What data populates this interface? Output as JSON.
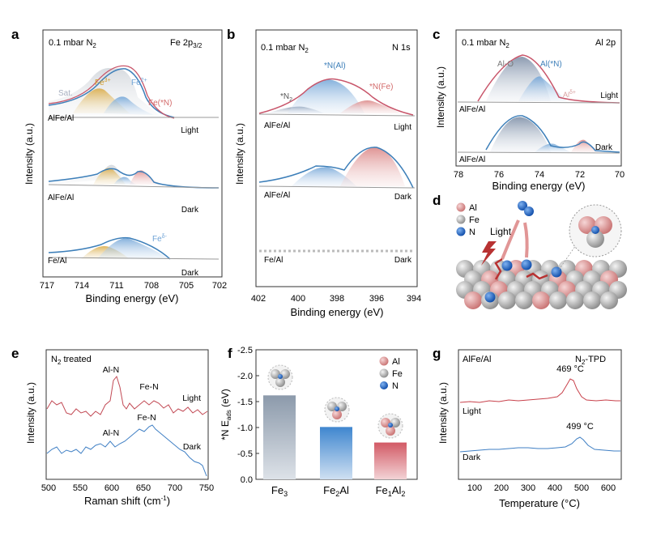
{
  "panels": {
    "a": {
      "letter": "a",
      "condition": "0.1 mbar N",
      "condition_sub": "2",
      "region": "Fe 2p",
      "region_sub": "3/2",
      "ylabel": "Intensity (a.u.)",
      "xlabel": "Binding energy (eV)",
      "ticks": [
        "717",
        "714",
        "711",
        "708",
        "705",
        "702"
      ],
      "peak_labels": {
        "sat": "Sat.",
        "fe3": "Fe",
        "fe3_sup": "3+",
        "fe2": "Fe",
        "fe2_sup": "2+",
        "fen": "Fe(*N)",
        "fed": "Fe",
        "fed_sup": "δ-"
      },
      "traces": [
        {
          "sample": "AlFe/Al",
          "state": "Light"
        },
        {
          "sample": "AlFe/Al",
          "state": "Dark"
        },
        {
          "sample": "Fe/Al",
          "state": "Dark"
        }
      ]
    },
    "b": {
      "letter": "b",
      "condition": "0.1 mbar N",
      "condition_sub": "2",
      "region": "N 1s",
      "ylabel": "Intensity (a.u.)",
      "xlabel": "Binding energy (eV)",
      "ticks": [
        "402",
        "400",
        "398",
        "396",
        "394"
      ],
      "peak_labels": {
        "n2": "*N",
        "n2_sub": "2",
        "nal": "*N(Al)",
        "nfe": "*N(Fe)"
      },
      "traces": [
        {
          "sample": "AlFe/Al",
          "state": "Light"
        },
        {
          "sample": "AlFe/Al",
          "state": "Dark"
        },
        {
          "sample": "Fe/Al",
          "state": "Dark"
        }
      ]
    },
    "c": {
      "letter": "c",
      "condition": "0.1 mbar N",
      "condition_sub": "2",
      "region": "Al 2p",
      "ylabel": "Intensity (a.u.)",
      "xlabel": "Binding energy (eV)",
      "ticks": [
        "78",
        "76",
        "74",
        "72",
        "70"
      ],
      "peak_labels": {
        "alo": "Al-O",
        "aln": "Al(*N)",
        "ald": "Al",
        "ald_sup": "δ+"
      },
      "traces": [
        {
          "sample": "AlFe/Al",
          "state": "Light"
        },
        {
          "sample": "AlFe/Al",
          "state": "Dark"
        }
      ]
    },
    "d": {
      "letter": "d",
      "legend": [
        {
          "label": "Al",
          "color": "#d98a8a"
        },
        {
          "label": "Fe",
          "color": "#b5b5b5"
        },
        {
          "label": "N",
          "color": "#1f5fc0"
        }
      ],
      "light_label": "Light"
    },
    "e": {
      "letter": "e",
      "treatment": "N",
      "treatment_sub": "2",
      "treatment_suffix": " treated",
      "ylabel": "Intensity (a.u.)",
      "xlabel": "Raman shift (cm",
      "xlabel_sup": "-1",
      "xlabel_end": ")",
      "ticks": [
        "500",
        "550",
        "600",
        "650",
        "700",
        "750"
      ],
      "light": {
        "state": "Light",
        "peaks": [
          "Al-N",
          "Fe-N"
        ]
      },
      "dark": {
        "state": "Dark",
        "peaks": [
          "Al-N",
          "Fe-N"
        ]
      }
    },
    "f": {
      "letter": "f"
    },
    "g": {
      "letter": "g",
      "sample": "AlFe/Al",
      "method": "N",
      "method_sub": "2",
      "method_suffix": "-TPD",
      "ylabel": "Intensity (a.u.)",
      "xlabel": "Temperature (°C)",
      "ticks": [
        "100",
        "200",
        "300",
        "400",
        "500",
        "600"
      ],
      "light": {
        "state": "Light",
        "peak": "469 °C"
      },
      "dark": {
        "state": "Dark",
        "peak": "499 °C"
      }
    }
  },
  "chart_data": [
    {
      "panel": "f",
      "type": "bar",
      "ylabel": "*N E",
      "ylabel_sub": "ads",
      "ylabel_unit": " (eV)",
      "categories": [
        "Fe3",
        "Fe2Al",
        "Fe1Al2"
      ],
      "category_labels": [
        {
          "main": "Fe",
          "sub": "3"
        },
        {
          "main": "Fe",
          "sub": "2",
          "tail": "Al"
        },
        {
          "main": "Fe",
          "sub": "1",
          "tail": "Al",
          "tail_sub": "2"
        }
      ],
      "values": [
        -1.62,
        -1.01,
        -0.71
      ],
      "colors": [
        "#a9b4c2",
        "#5b9bd5",
        "#d9737b"
      ],
      "ylim": [
        0,
        -2.5
      ],
      "yticks": [
        "0.0",
        "-0.5",
        "-1.0",
        "-1.5",
        "-2.0",
        "-2.5"
      ],
      "legend": [
        "Al",
        "Fe",
        "N"
      ]
    },
    {
      "panel": "g",
      "type": "line",
      "xlabel": "Temperature (°C)",
      "xlim": [
        50,
        650
      ],
      "series": [
        {
          "name": "Light",
          "color": "#c8414b",
          "peak_x": 469
        },
        {
          "name": "Dark",
          "color": "#3f7fc4",
          "peak_x": 499
        }
      ]
    }
  ]
}
